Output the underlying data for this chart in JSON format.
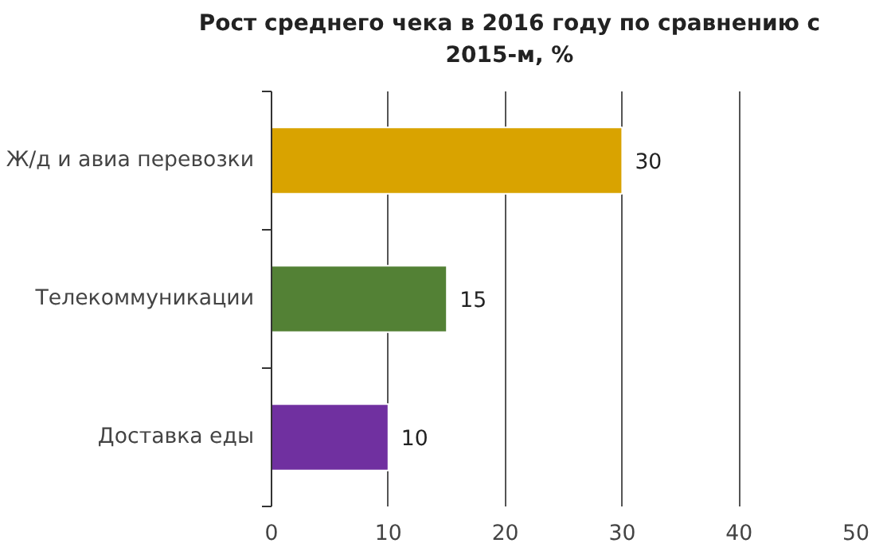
{
  "chart_data": {
    "type": "bar",
    "orientation": "horizontal",
    "title": "Рост среднего чека в 2016 году по сравнению с 2015-м, %",
    "categories": [
      "Ж/д и авиа перевозки",
      "Телекоммуникации",
      "Доставка еды"
    ],
    "values": [
      30,
      15,
      10
    ],
    "colors": [
      "#d9a300",
      "#538135",
      "#7030a0"
    ],
    "xlim": [
      0,
      50
    ],
    "xticks": [
      0,
      10,
      20,
      30,
      40,
      50
    ],
    "grid": "x",
    "data_labels": true
  }
}
